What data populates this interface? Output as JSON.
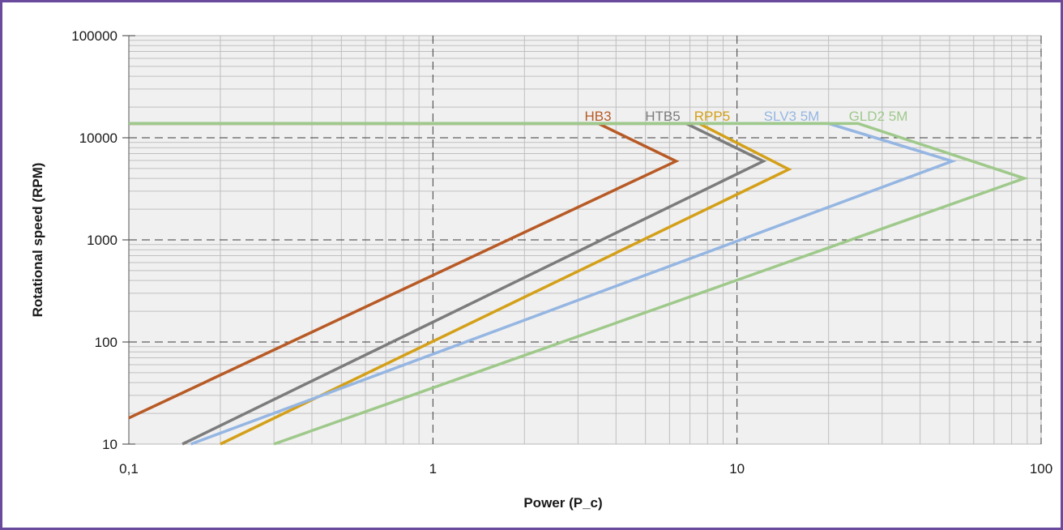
{
  "chart_data": {
    "type": "line",
    "xlabel": "Power (P_c)",
    "ylabel": "Rotational speed (RPM)",
    "x_scale": "log",
    "y_scale": "log",
    "xlim": [
      0.1,
      100
    ],
    "ylim": [
      10,
      100000
    ],
    "x_ticks": [
      {
        "value": 0.1,
        "label": "0,1"
      },
      {
        "value": 1,
        "label": "1"
      },
      {
        "value": 10,
        "label": "10"
      },
      {
        "value": 100,
        "label": "100"
      }
    ],
    "y_ticks": [
      {
        "value": 10,
        "label": "10"
      },
      {
        "value": 100,
        "label": "100"
      },
      {
        "value": 1000,
        "label": "1000"
      },
      {
        "value": 10000,
        "label": "10000"
      },
      {
        "value": 100000,
        "label": "100000"
      }
    ],
    "grid": true,
    "series": [
      {
        "name": "HB3",
        "color": "#b85a25",
        "points": [
          [
            0.1,
            18
          ],
          [
            6.3,
            5900
          ],
          [
            3.5,
            13800
          ],
          [
            0.1,
            13800
          ]
        ]
      },
      {
        "name": "HTB5",
        "color": "#7c7c7c",
        "points": [
          [
            0.15,
            10
          ],
          [
            12.2,
            5900
          ],
          [
            6.8,
            13800
          ],
          [
            0.1,
            13800
          ]
        ]
      },
      {
        "name": "RPP5",
        "color": "#d4a019",
        "points": [
          [
            0.2,
            10
          ],
          [
            14.8,
            4900
          ],
          [
            7.5,
            13800
          ],
          [
            0.1,
            13800
          ]
        ]
      },
      {
        "name": "SLV3 5M",
        "color": "#95b6e2",
        "points": [
          [
            0.16,
            10
          ],
          [
            51,
            5900
          ],
          [
            20,
            13800
          ],
          [
            0.1,
            13800
          ]
        ]
      },
      {
        "name": "GLD2 5M",
        "color": "#9fc98b",
        "points": [
          [
            0.3,
            10
          ],
          [
            88,
            4000
          ],
          [
            25,
            13800
          ],
          [
            0.1,
            13800
          ]
        ]
      }
    ]
  }
}
